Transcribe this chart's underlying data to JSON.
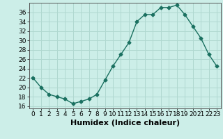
{
  "x": [
    0,
    1,
    2,
    3,
    4,
    5,
    6,
    7,
    8,
    9,
    10,
    11,
    12,
    13,
    14,
    15,
    16,
    17,
    18,
    19,
    20,
    21,
    22,
    23
  ],
  "y": [
    22,
    20,
    18.5,
    18,
    17.5,
    16.5,
    17,
    17.5,
    18.5,
    21.5,
    24.5,
    27,
    29.5,
    34,
    35.5,
    35.5,
    37,
    37,
    37.5,
    35.5,
    33,
    30.5,
    27,
    24.5
  ],
  "line_color": "#1a7060",
  "marker": "D",
  "marker_color": "#1a7060",
  "bg_color": "#cceee8",
  "grid_color": "#b0d8d0",
  "xlabel": "Humidex (Indice chaleur)",
  "ylim": [
    15.5,
    38
  ],
  "yticks": [
    16,
    18,
    20,
    22,
    24,
    26,
    28,
    30,
    32,
    34,
    36
  ],
  "xlim": [
    -0.5,
    23.5
  ],
  "xticks": [
    0,
    1,
    2,
    3,
    4,
    5,
    6,
    7,
    8,
    9,
    10,
    11,
    12,
    13,
    14,
    15,
    16,
    17,
    18,
    19,
    20,
    21,
    22,
    23
  ],
  "xlabel_fontsize": 8,
  "tick_fontsize": 6.5,
  "linewidth": 1.0,
  "markersize": 2.5
}
